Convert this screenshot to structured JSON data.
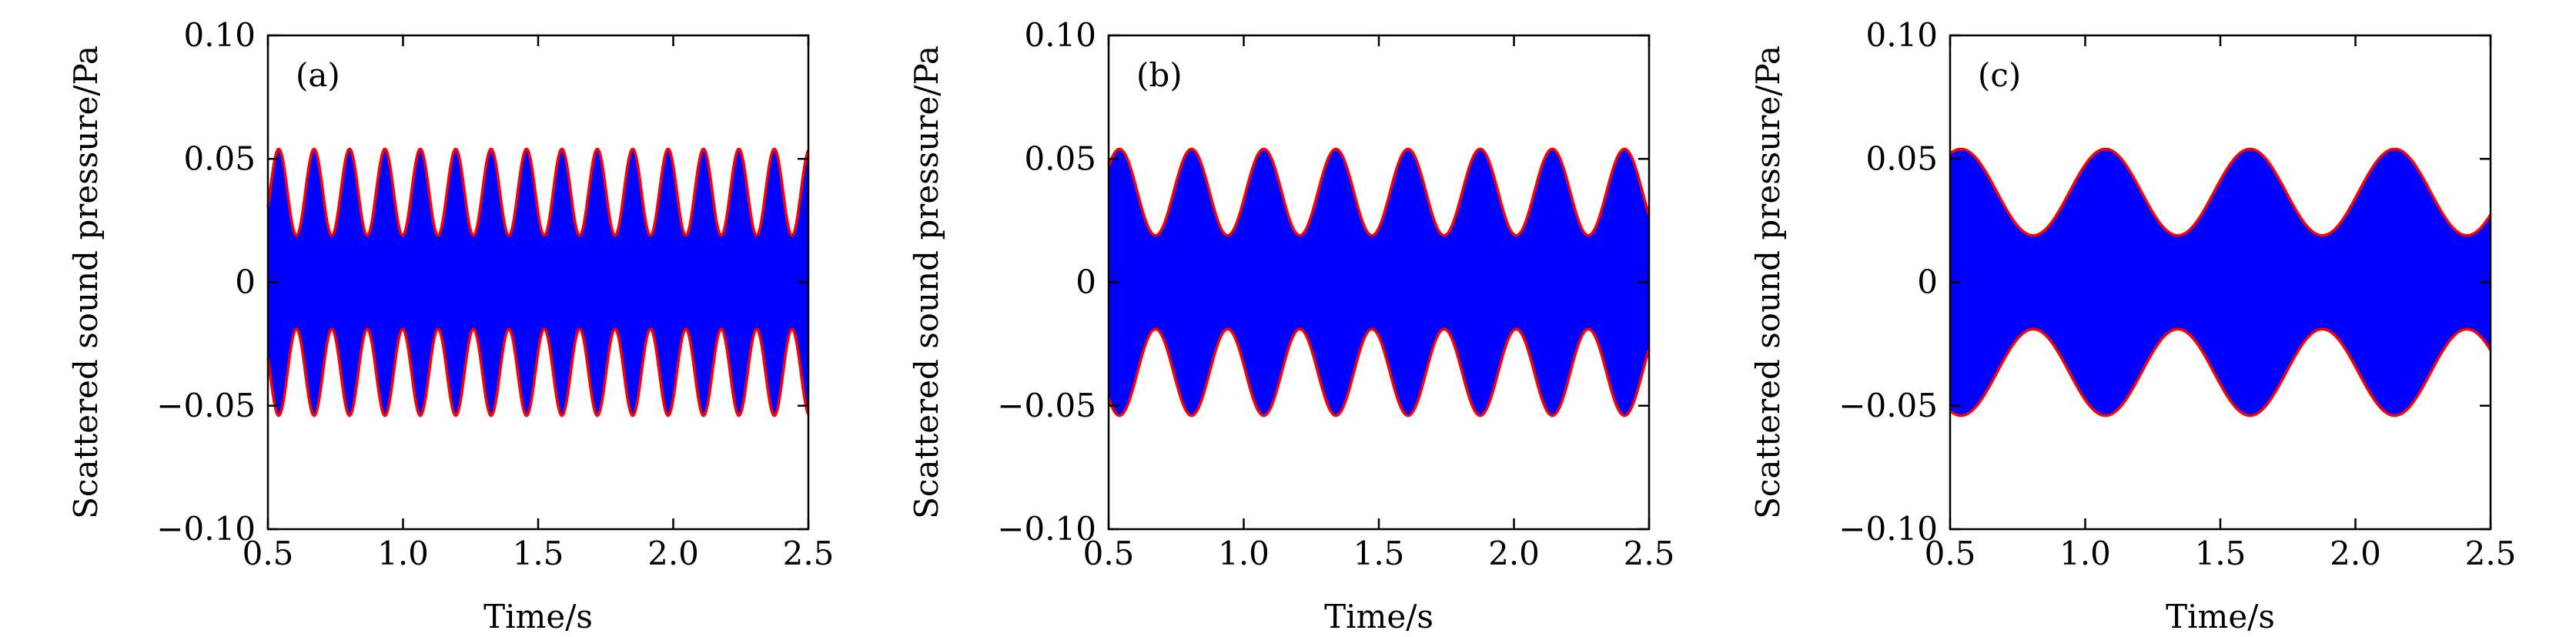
{
  "figure": {
    "panels": [
      "a",
      "b",
      "c"
    ]
  },
  "chart_data": [
    {
      "type": "area",
      "panel_label": "(a)",
      "xlabel": "Time/s",
      "ylabel": "Scattered sound pressure/Pa",
      "xlim": [
        0.5,
        2.5
      ],
      "ylim": [
        -0.1,
        0.1
      ],
      "xticks": [
        0.5,
        1.0,
        1.5,
        2.0,
        2.5
      ],
      "xtick_labels": [
        "0.5",
        "1.0",
        "1.5",
        "2.0",
        "2.5"
      ],
      "yticks": [
        -0.1,
        -0.05,
        0,
        0.05,
        0.1
      ],
      "ytick_labels": [
        "−0.10",
        "−0.05",
        "0",
        "0.05",
        "0.10"
      ],
      "envelope_max": 0.054,
      "envelope_min": 0.019,
      "modulation_period_s": 0.131,
      "first_peak_s": 0.54,
      "fill_color": "#0000ff",
      "envelope_color": "#ff0000",
      "grid": false
    },
    {
      "type": "area",
      "panel_label": "(b)",
      "xlabel": "Time/s",
      "ylabel": "Scattered sound pressure/Pa",
      "xlim": [
        0.5,
        2.5
      ],
      "ylim": [
        -0.1,
        0.1
      ],
      "xticks": [
        0.5,
        1.0,
        1.5,
        2.0,
        2.5
      ],
      "xtick_labels": [
        "0.5",
        "1.0",
        "1.5",
        "2.0",
        "2.5"
      ],
      "yticks": [
        -0.1,
        -0.05,
        0,
        0.05,
        0.1
      ],
      "ytick_labels": [
        "−0.10",
        "−0.05",
        "0",
        "0.05",
        "0.10"
      ],
      "envelope_max": 0.054,
      "envelope_min": 0.019,
      "modulation_period_s": 0.267,
      "first_peak_s": 0.54,
      "fill_color": "#0000ff",
      "envelope_color": "#ff0000",
      "grid": false
    },
    {
      "type": "area",
      "panel_label": "(c)",
      "xlabel": "Time/s",
      "ylabel": "Scattered sound pressure/Pa",
      "xlim": [
        0.5,
        2.5
      ],
      "ylim": [
        -0.1,
        0.1
      ],
      "xticks": [
        0.5,
        1.0,
        1.5,
        2.0,
        2.5
      ],
      "xtick_labels": [
        "0.5",
        "1.0",
        "1.5",
        "2.0",
        "2.5"
      ],
      "yticks": [
        -0.1,
        -0.05,
        0,
        0.05,
        0.1
      ],
      "ytick_labels": [
        "−0.10",
        "−0.05",
        "0",
        "0.05",
        "0.10"
      ],
      "envelope_max": 0.054,
      "envelope_min": 0.019,
      "modulation_period_s": 0.535,
      "first_peak_s": 0.54,
      "fill_color": "#0000ff",
      "envelope_color": "#ff0000",
      "grid": false
    }
  ]
}
